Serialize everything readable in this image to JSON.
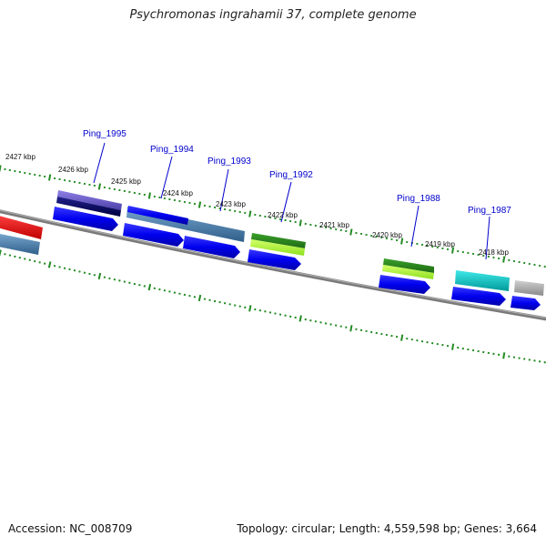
{
  "title": "Psychromonas ingrahamii 37, complete genome",
  "footer": {
    "accession": "Accession: NC_008709",
    "summary": "Topology: circular; Length: 4,559,598 bp; Genes: 3,664"
  },
  "ticks": [
    "2427 kbp",
    "2426 kbp",
    "2425 kbp",
    "2424 kbp",
    "2423 kbp",
    "2422 kbp",
    "2421 kbp",
    "2420 kbp",
    "2419 kbp",
    "2418 kbp"
  ],
  "gene_labels": [
    "Ping_1995",
    "Ping_1994",
    "Ping_1993",
    "Ping_1992",
    "Ping_1988",
    "Ping_1987"
  ],
  "colors": {
    "backbone": "#808080",
    "cds": "#0000ee",
    "tick": "#228b22",
    "label": "#0000cc",
    "red": "#ee0000",
    "steel": "#4682b4",
    "purple": "#6a5acd",
    "navy": "#00006a",
    "green": "#2e8b20",
    "lime": "#adff2f",
    "cyan": "#00c8c8",
    "gray": "#a9a9a9"
  }
}
